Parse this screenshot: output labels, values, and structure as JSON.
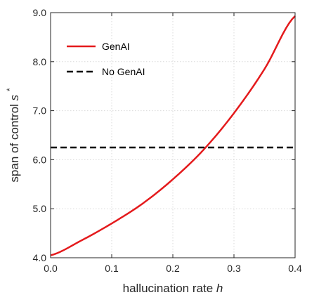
{
  "chart_data": {
    "type": "line",
    "title": "",
    "xlabel": "hallucination rate",
    "xlabel_var": "h",
    "ylabel": "span of control",
    "ylabel_var": "s",
    "ylabel_sup": "*",
    "xlim": [
      0.0,
      0.4
    ],
    "ylim": [
      4.0,
      9.0
    ],
    "xticks": [
      0.0,
      0.1,
      0.2,
      0.3,
      0.4
    ],
    "yticks": [
      4.0,
      5.0,
      6.0,
      7.0,
      8.0,
      9.0
    ],
    "xtick_labels": [
      "0.0",
      "0.1",
      "0.2",
      "0.3",
      "0.4"
    ],
    "ytick_labels": [
      "4.0",
      "5.0",
      "6.0",
      "7.0",
      "8.0",
      "9.0"
    ],
    "grid": true,
    "legend_position": "top-left",
    "series": [
      {
        "name": "GenAI",
        "style": "solid",
        "color": "#e41a1c",
        "x": [
          0.0,
          0.05,
          0.1,
          0.15,
          0.2,
          0.25,
          0.3,
          0.35,
          0.4
        ],
        "y": [
          4.05,
          4.35,
          4.7,
          5.1,
          5.6,
          6.2,
          6.95,
          7.85,
          8.93
        ]
      },
      {
        "name": "No GenAI",
        "style": "dashed",
        "color": "#000000",
        "x": [
          0.0,
          0.4
        ],
        "y": [
          6.25,
          6.25
        ]
      }
    ]
  }
}
